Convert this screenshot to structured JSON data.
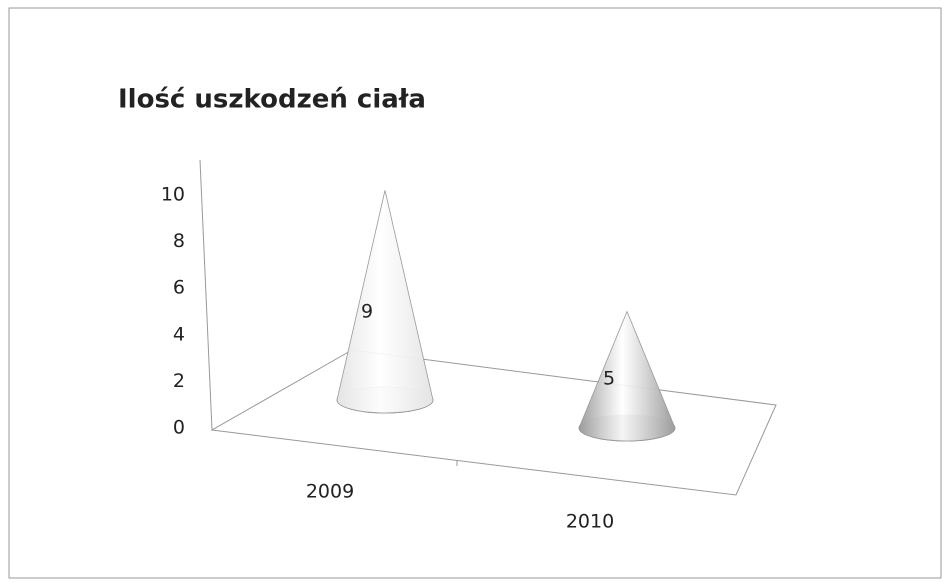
{
  "chart_data": {
    "type": "cone",
    "title": "Ilość uszkodzeń ciała",
    "categories": [
      "2009",
      "2010"
    ],
    "values": [
      9,
      5
    ],
    "colors": [
      "#e4e4e4",
      "#9c9c9c"
    ],
    "ylim": [
      0,
      10
    ],
    "yticks": [
      0,
      2,
      4,
      6,
      8,
      10
    ]
  }
}
